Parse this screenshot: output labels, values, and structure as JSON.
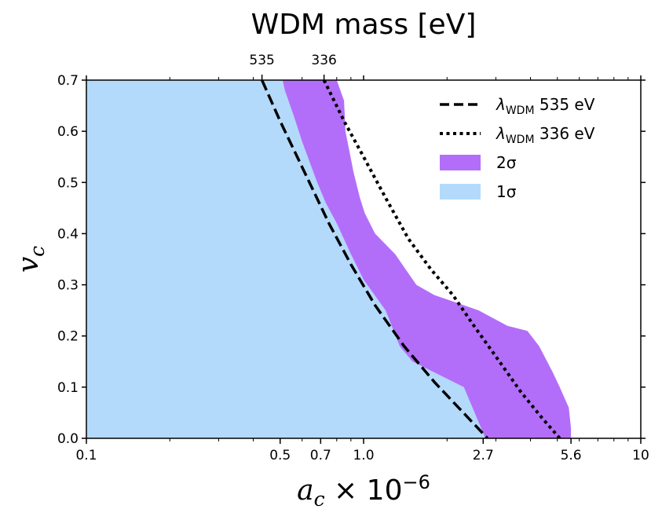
{
  "chart_data": {
    "type": "area",
    "title": "WDM mass [eV]",
    "xlabel": "a_c × 10^-6",
    "ylabel": "v_c",
    "xscale": "log",
    "xlim": [
      0.1,
      10
    ],
    "ylim": [
      0,
      0.7
    ],
    "x_ticks": [
      {
        "value": 0.1,
        "label": "0.1"
      },
      {
        "value": 0.5,
        "label": "0.5"
      },
      {
        "value": 0.7,
        "label": "0.7"
      },
      {
        "value": 1.0,
        "label": "1.0"
      },
      {
        "value": 2.7,
        "label": "2.7"
      },
      {
        "value": 5.6,
        "label": "5.6"
      },
      {
        "value": 10,
        "label": "10"
      }
    ],
    "y_ticks": [
      {
        "value": 0.0,
        "label": "0.0"
      },
      {
        "value": 0.1,
        "label": "0.1"
      },
      {
        "value": 0.2,
        "label": "0.2"
      },
      {
        "value": 0.3,
        "label": "0.3"
      },
      {
        "value": 0.4,
        "label": "0.4"
      },
      {
        "value": 0.5,
        "label": "0.5"
      },
      {
        "value": 0.6,
        "label": "0.6"
      },
      {
        "value": 0.7,
        "label": "0.7"
      }
    ],
    "top_axis": {
      "label": "WDM mass [eV]",
      "ticks": [
        {
          "value": 0.43,
          "label": "535"
        },
        {
          "value": 0.72,
          "label": "336"
        }
      ]
    },
    "regions": [
      {
        "name": "2σ",
        "legend": "2σ",
        "color": "#b36ef9",
        "boundary": [
          [
            0.51,
            0.7
          ],
          [
            0.8,
            0.7
          ],
          [
            0.85,
            0.66
          ],
          [
            0.86,
            0.6
          ],
          [
            0.89,
            0.56
          ],
          [
            0.92,
            0.52
          ],
          [
            0.97,
            0.47
          ],
          [
            1.01,
            0.44
          ],
          [
            1.1,
            0.4
          ],
          [
            1.3,
            0.36
          ],
          [
            1.55,
            0.3
          ],
          [
            1.8,
            0.28
          ],
          [
            2.6,
            0.25
          ],
          [
            3.3,
            0.22
          ],
          [
            3.9,
            0.21
          ],
          [
            4.3,
            0.18
          ],
          [
            4.8,
            0.13
          ],
          [
            5.1,
            0.1
          ],
          [
            5.5,
            0.06
          ],
          [
            5.6,
            0.02
          ],
          [
            5.6,
            0.0
          ],
          [
            2.75,
            0.0
          ],
          [
            2.3,
            0.1
          ],
          [
            1.5,
            0.15
          ],
          [
            1.35,
            0.18
          ],
          [
            1.2,
            0.25
          ],
          [
            1.0,
            0.31
          ],
          [
            0.9,
            0.36
          ],
          [
            0.8,
            0.42
          ],
          [
            0.73,
            0.46
          ],
          [
            0.68,
            0.5
          ],
          [
            0.6,
            0.58
          ],
          [
            0.56,
            0.63
          ],
          [
            0.52,
            0.68
          ]
        ]
      },
      {
        "name": "1σ",
        "legend": "1σ",
        "color": "#b3dafb",
        "boundary": [
          [
            0.1,
            0.0
          ],
          [
            0.1,
            0.7
          ],
          [
            0.51,
            0.7
          ],
          [
            0.52,
            0.68
          ],
          [
            0.56,
            0.63
          ],
          [
            0.6,
            0.58
          ],
          [
            0.68,
            0.5
          ],
          [
            0.73,
            0.46
          ],
          [
            0.8,
            0.42
          ],
          [
            0.9,
            0.36
          ],
          [
            1.0,
            0.31
          ],
          [
            1.2,
            0.25
          ],
          [
            1.35,
            0.18
          ],
          [
            1.5,
            0.15
          ],
          [
            2.3,
            0.1
          ],
          [
            2.75,
            0.0
          ]
        ]
      }
    ],
    "series": [
      {
        "name": "λ_WDM 535 eV",
        "legend": "λWDM 535 eV",
        "style": "dashed",
        "color": "#000000",
        "points": [
          [
            0.43,
            0.7
          ],
          [
            0.5,
            0.62
          ],
          [
            0.6,
            0.53
          ],
          [
            0.75,
            0.42
          ],
          [
            0.9,
            0.34
          ],
          [
            1.1,
            0.26
          ],
          [
            1.4,
            0.18
          ],
          [
            1.8,
            0.11
          ],
          [
            2.2,
            0.06
          ],
          [
            2.8,
            0.0
          ]
        ]
      },
      {
        "name": "λ_WDM 336 eV",
        "legend": "λWDM 336 eV",
        "style": "dotted",
        "color": "#000000",
        "points": [
          [
            0.72,
            0.7
          ],
          [
            0.85,
            0.62
          ],
          [
            1.0,
            0.55
          ],
          [
            1.2,
            0.47
          ],
          [
            1.45,
            0.39
          ],
          [
            1.75,
            0.33
          ],
          [
            2.1,
            0.28
          ],
          [
            2.5,
            0.22
          ],
          [
            3.0,
            0.16
          ],
          [
            3.7,
            0.09
          ],
          [
            4.4,
            0.04
          ],
          [
            5.1,
            0.0
          ]
        ]
      }
    ],
    "legend_position": "top-right",
    "legend_entries": [
      {
        "label_prefix": "λ",
        "label_sub": "WDM",
        "label_suffix": " 535 eV",
        "style": "dashed"
      },
      {
        "label_prefix": "λ",
        "label_sub": "WDM",
        "label_suffix": " 336 eV",
        "style": "dotted"
      },
      {
        "label_prefix": "2σ",
        "label_sub": "",
        "label_suffix": "",
        "style": "patch",
        "color": "#b36ef9"
      },
      {
        "label_prefix": "1σ",
        "label_sub": "",
        "label_suffix": "",
        "style": "patch",
        "color": "#b3dafb"
      }
    ]
  }
}
